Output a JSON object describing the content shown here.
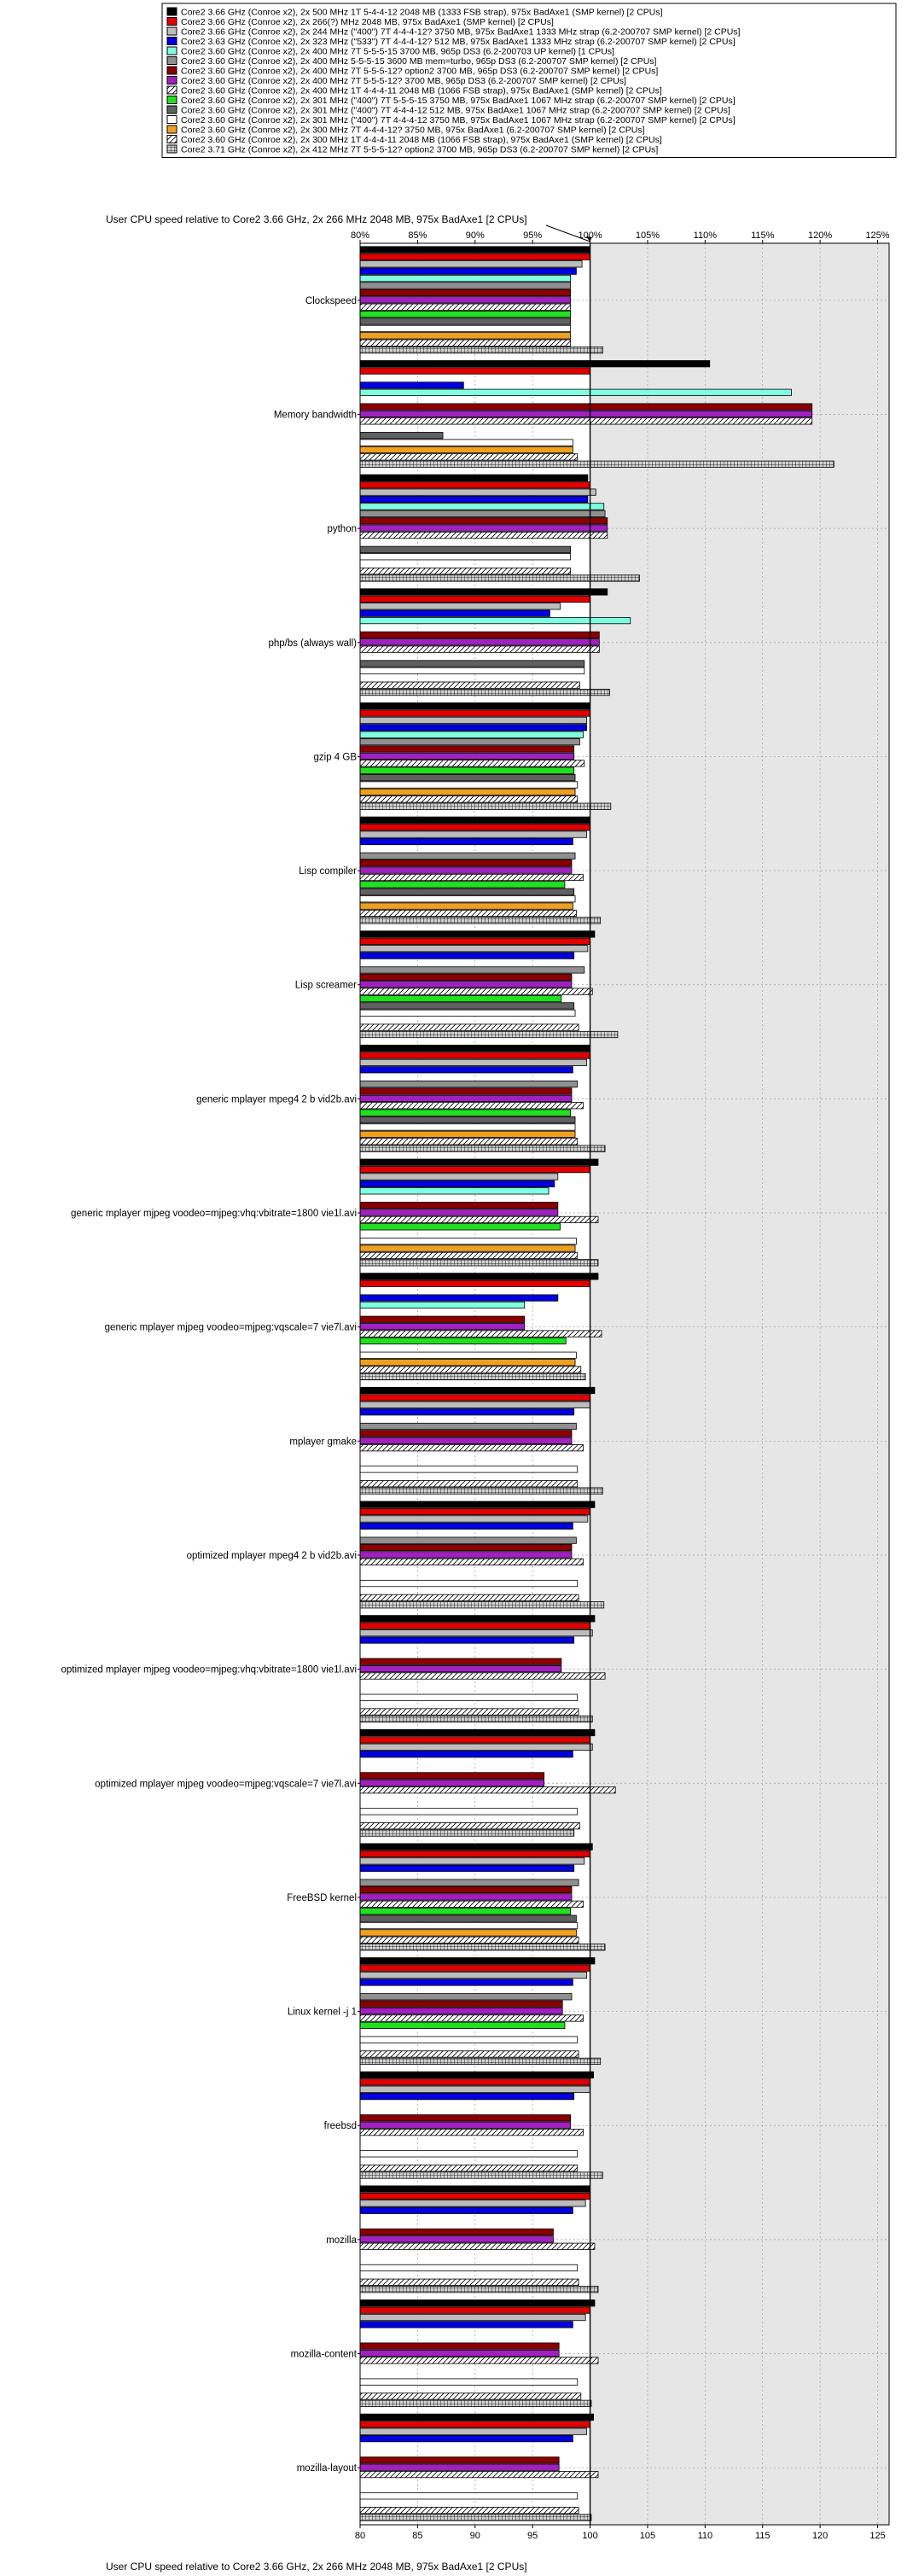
{
  "chart_data": {
    "type": "bar",
    "orientation": "horizontal",
    "title": "User CPU speed relative to Core2 3.66 GHz, 2x 266 MHz 2048 MB, 975x BadAxe1 [2 CPUs]",
    "xlabel": "User CPU speed relative to Core2 3.66 GHz, 2x 266 MHz 2048 MB, 975x BadAxe1 [2 CPUs]",
    "xlim": [
      80,
      126
    ],
    "top_tick_labels": [
      "80%",
      "85%",
      "90%",
      "95%",
      "100%",
      "105%",
      "110%",
      "115%",
      "120%",
      "125%"
    ],
    "bottom_tick_labels": [
      "80",
      "85",
      "90",
      "95",
      "100",
      "105",
      "110",
      "115",
      "120",
      "125"
    ],
    "reference_value": 100,
    "grid": true,
    "legend_position": "top",
    "categories": [
      "Clockspeed",
      "Memory bandwidth",
      "python",
      "php/bs (always wall)",
      "gzip 4 GB",
      "Lisp compiler",
      "Lisp screamer",
      "generic mplayer mpeg4 2 b vid2b.avi",
      "generic mplayer mjpeg voodeo=mjpeg:vhq:vbitrate=1800 vie1l.avi",
      "generic mplayer mjpeg voodeo=mjpeg:vqscale=7 vie7l.avi",
      "mplayer gmake",
      "optimized mplayer mpeg4 2 b vid2b.avi",
      "optimized mplayer mjpeg voodeo=mjpeg:vhq:vbitrate=1800 vie1l.avi",
      "optimized mplayer mjpeg voodeo=mjpeg:vqscale=7 vie7l.avi",
      "FreeBSD kernel",
      "Linux kernel -j 1",
      "freebsd",
      "mozilla",
      "mozilla-content",
      "mozilla-layout"
    ],
    "series": [
      {
        "name": "Core2 3.66 GHz (Conroe x2), 2x 500 MHz 1T 5-4-4-12 2048 MB (1333 FSB strap), 975x BadAxe1 (SMP kernel) [2 CPUs]",
        "color": "#000000",
        "pattern": "solid",
        "values": [
          100,
          110.4,
          99.8,
          101.5,
          100,
          100,
          100.4,
          100,
          100.7,
          100.7,
          100.4,
          100.4,
          100.4,
          100.4,
          100.2,
          100.4,
          100.3,
          100,
          100.4,
          100.3
        ]
      },
      {
        "name": "Core2 3.66 GHz (Conroe x2), 2x 266(?) MHz 2048 MB, 975x BadAxe1 (SMP kernel) [2 CPUs]",
        "color": "#e00000",
        "pattern": "solid",
        "values": [
          100,
          100,
          100,
          100,
          100,
          100,
          100,
          100,
          100,
          100,
          100,
          100,
          100,
          100,
          100,
          100,
          100,
          100,
          100,
          100
        ]
      },
      {
        "name": "Core2 3.66 GHz (Conroe x2), 2x 244 MHz (\"400\") 7T 4-4-4-12? 3750 MB, 975x BadAxe1 1333 MHz strap (6.2-200707 SMP kernel) [2 CPUs]",
        "color": "#bdbdbd",
        "pattern": "solid",
        "values": [
          99.3,
          null,
          100.5,
          97.4,
          99.7,
          99.7,
          99.8,
          99.7,
          97.2,
          null,
          100,
          99.8,
          100.2,
          100.2,
          99.5,
          99.7,
          100,
          99.6,
          99.6,
          99.7
        ]
      },
      {
        "name": "Core2 3.63 GHz (Conroe x2), 2x 323 MHz (\"533\") 7T 4-4-4-12? 512 MB, 975x BadAxe1 1333 MHz strap (6.2-200707 SMP kernel) [2 CPUs]",
        "color": "#0000e0",
        "pattern": "solid",
        "values": [
          98.8,
          89,
          99.8,
          96.5,
          99.7,
          98.5,
          98.6,
          98.5,
          96.9,
          97.2,
          98.6,
          98.5,
          98.6,
          98.5,
          98.6,
          98.5,
          98.6,
          98.5,
          98.5,
          98.5
        ]
      },
      {
        "name": "Core2 3.60 GHz (Conroe x2), 2x 400 MHz 7T 5-5-5-15 3700 MB, 965p DS3 (6.2-200703 UP kernel) [1 CPUs]",
        "color": "#80ffe0",
        "pattern": "solid",
        "values": [
          98.3,
          117.5,
          101.2,
          103.5,
          99.4,
          null,
          null,
          null,
          96.4,
          94.3,
          null,
          null,
          null,
          null,
          null,
          null,
          null,
          null,
          null,
          null
        ]
      },
      {
        "name": "Core2 3.60 GHz (Conroe x2), 2x 400 MHz 5-5-5-15 3600 MB mem=turbo, 965p DS3 (6.2-200707 SMP kernel) [2 CPUs]",
        "color": "#909090",
        "pattern": "solid",
        "values": [
          98.3,
          null,
          101.3,
          null,
          99.1,
          98.7,
          99.5,
          98.9,
          null,
          null,
          98.8,
          98.8,
          null,
          null,
          99,
          98.4,
          null,
          null,
          null,
          null
        ]
      },
      {
        "name": "Core2 3.60 GHz (Conroe x2), 2x 400 MHz 7T 5-5-5-12? option2 3700 MB, 965p DS3 (6.2-200707 SMP kernel) [2 CPUs]",
        "color": "#8a0000",
        "pattern": "solid",
        "values": [
          98.3,
          119.3,
          101.5,
          100.8,
          98.6,
          98.4,
          98.4,
          98.4,
          97.2,
          94.3,
          98.4,
          98.4,
          97.5,
          96,
          98.4,
          97.6,
          98.3,
          96.8,
          97.3,
          97.3
        ]
      },
      {
        "name": "Core2 3.60 GHz (Conroe x2), 2x 400 MHz 7T 5-5-5-12? 3700 MB, 965p DS3 (6.2-200707 SMP kernel) [2 CPUs]",
        "color": "#a020c0",
        "pattern": "solid",
        "values": [
          98.3,
          119.3,
          101.5,
          100.8,
          98.6,
          98.4,
          98.4,
          98.4,
          97.2,
          94.3,
          98.4,
          98.4,
          97.5,
          96,
          98.4,
          97.6,
          98.3,
          96.8,
          97.3,
          97.3
        ]
      },
      {
        "name": "Core2 3.60 GHz (Conroe x2), 2x 400 MHz 1T 4-4-4-11 2048 MB (1066 FSB strap), 975x BadAxe1 (SMP kernel) [2 CPUs]",
        "color": "#ffffff",
        "pattern": "diag",
        "values": [
          98.3,
          119.3,
          101.5,
          100.8,
          99.5,
          99.4,
          100.2,
          99.4,
          100.7,
          101,
          99.4,
          99.4,
          101.3,
          102.2,
          99.4,
          99.4,
          99.4,
          100.4,
          100.7,
          100.7
        ]
      },
      {
        "name": "Core2 3.60 GHz (Conroe x2), 2x 301 MHz (\"400\") 7T 5-5-5-15 3750 MB, 975x BadAxe1 1067 MHz strap (6.2-200707 SMP kernel) [2 CPUs]",
        "color": "#20e020",
        "pattern": "solid",
        "values": [
          98.3,
          null,
          null,
          null,
          98.6,
          97.8,
          97.5,
          98.3,
          97.4,
          97.9,
          null,
          null,
          null,
          null,
          98.3,
          97.8,
          null,
          null,
          null,
          null
        ]
      },
      {
        "name": "Core2 3.60 GHz (Conroe x2), 2x 301 MHz (\"400\") 7T 4-4-4-12 512 MB, 975x BadAxe1 1067 MHz strap (6.2-200707 SMP kernel) [2 CPUs]",
        "color": "#606060",
        "pattern": "solid",
        "values": [
          98.3,
          87.2,
          98.3,
          99.5,
          98.7,
          98.6,
          98.6,
          98.7,
          null,
          null,
          null,
          null,
          null,
          null,
          98.8,
          null,
          null,
          null,
          null,
          null
        ]
      },
      {
        "name": "Core2 3.60 GHz (Conroe x2), 2x 301 MHz (\"400\") 7T 4-4-4-12 3750 MB, 975x BadAxe1 1067 MHz strap (6.2-200707 SMP kernel) [2 CPUs]",
        "color": "#ffffff",
        "pattern": "solid",
        "values": [
          98.3,
          98.5,
          98.3,
          99.5,
          98.9,
          98.7,
          98.7,
          98.7,
          98.8,
          98.8,
          98.9,
          98.9,
          98.9,
          98.9,
          98.9,
          98.9,
          98.9,
          98.9,
          98.9,
          98.9
        ]
      },
      {
        "name": "Core2 3.60 GHz (Conroe x2), 2x 300 MHz 7T 4-4-4-12? 3750 MB, 975x BadAxe1 (6.2-200707 SMP kernel) [2 CPUs]",
        "color": "#f0a020",
        "pattern": "solid",
        "values": [
          98.3,
          98.5,
          null,
          null,
          98.7,
          98.5,
          null,
          98.7,
          98.7,
          98.7,
          null,
          null,
          null,
          null,
          98.8,
          null,
          null,
          null,
          null,
          null
        ]
      },
      {
        "name": "Core2 3.60 GHz (Conroe x2), 2x 300 MHz 1T 4-4-4-11 2048 MB (1066 FSB strap), 975x BadAxe1 (SMP kernel) [2 CPUs]",
        "color": "#ffffff",
        "pattern": "diag",
        "values": [
          98.3,
          98.9,
          98.3,
          99.1,
          98.9,
          98.8,
          99,
          98.9,
          98.9,
          99.2,
          98.9,
          99,
          99,
          99.1,
          99,
          99,
          98.9,
          99,
          99.2,
          99
        ]
      },
      {
        "name": "Core2 3.71 GHz (Conroe x2), 2x 412 MHz 7T 5-5-5-12? option2 3700 MB, 965p DS3 (6.2-200707 SMP kernel) [2 CPUs]",
        "color": "#c8c8c8",
        "pattern": "grid",
        "values": [
          101.1,
          121.2,
          104.3,
          101.7,
          101.8,
          100.9,
          102.4,
          101.3,
          100.7,
          99.6,
          101.1,
          101.2,
          100.2,
          98.6,
          101.3,
          100.9,
          101.1,
          100.7,
          100.1,
          100.1
        ]
      }
    ]
  }
}
